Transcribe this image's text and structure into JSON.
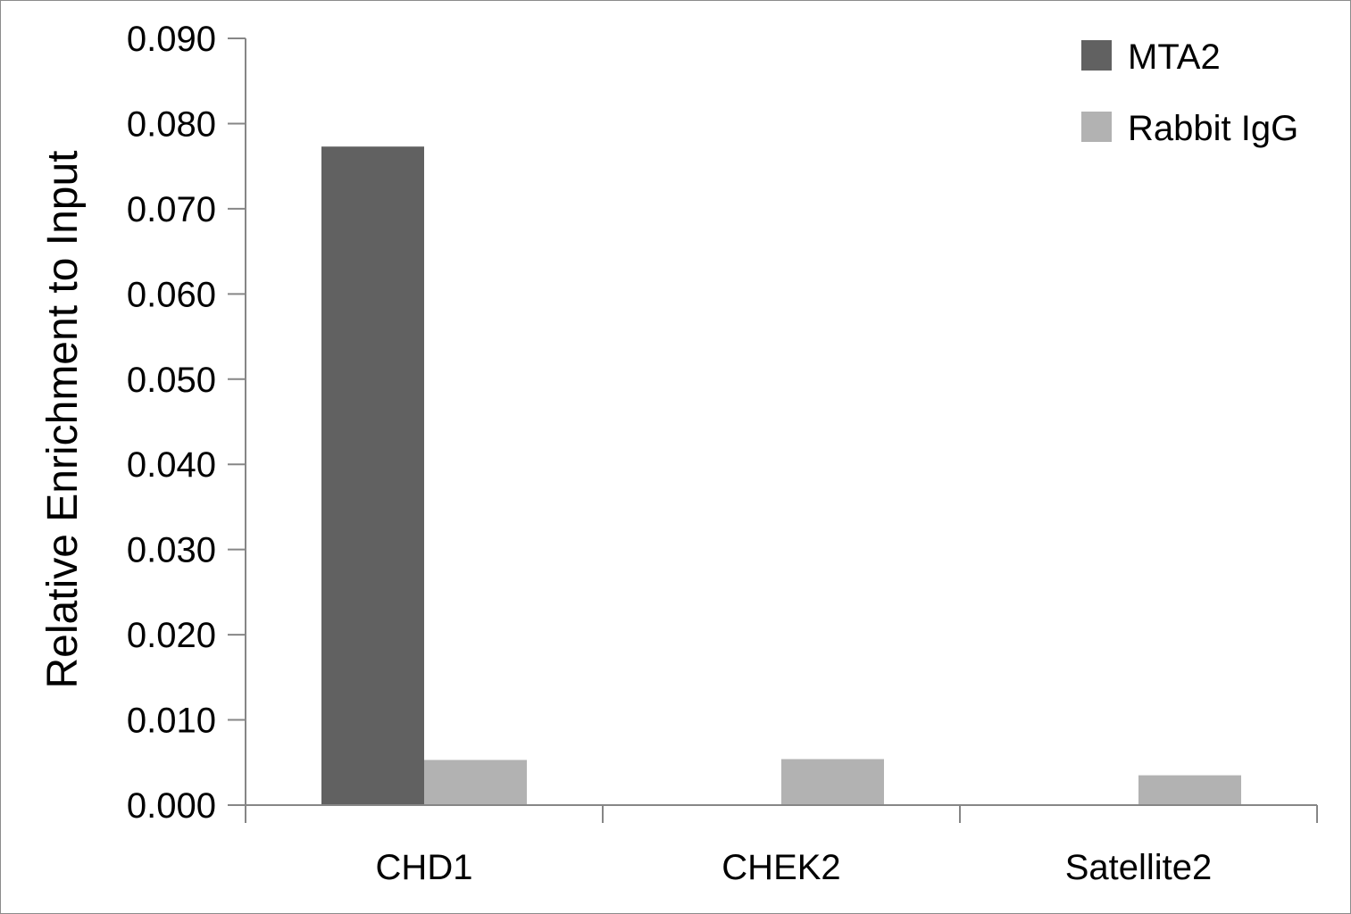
{
  "chart_data": {
    "type": "bar",
    "categories": [
      "CHD1",
      "CHEK2",
      "Satellite2"
    ],
    "series": [
      {
        "name": "MTA2",
        "values": [
          0.0773,
          0.0,
          0.0
        ],
        "color": "#616161"
      },
      {
        "name": "Rabbit IgG",
        "values": [
          0.0053,
          0.0054,
          0.0035
        ],
        "color": "#b2b2b2"
      }
    ],
    "ylabel": "Relative Enrichment to Input",
    "ylim": [
      0,
      0.09
    ],
    "yticks": [
      "0.000",
      "0.010",
      "0.020",
      "0.030",
      "0.040",
      "0.050",
      "0.060",
      "0.070",
      "0.080",
      "0.090"
    ],
    "grid": false,
    "legend_position": "top-right"
  }
}
